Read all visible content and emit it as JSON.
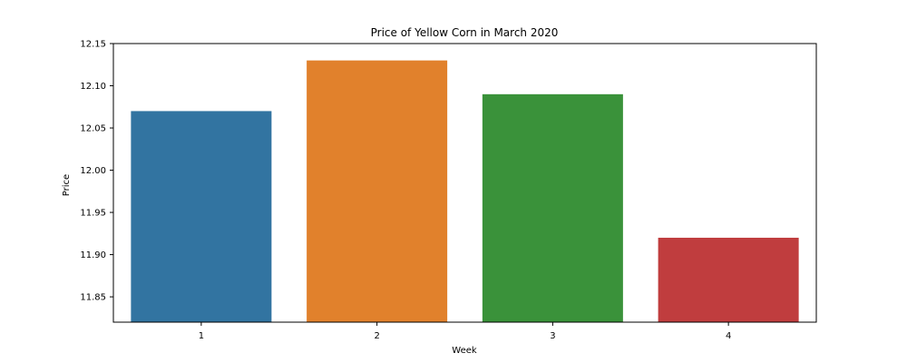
{
  "chart_data": {
    "type": "bar",
    "title": "Price of Yellow Corn in March 2020",
    "xlabel": "Week",
    "ylabel": "Price",
    "categories": [
      "1",
      "2",
      "3",
      "4"
    ],
    "values": [
      12.07,
      12.13,
      12.09,
      11.92
    ],
    "colors": [
      "#3274a1",
      "#e1812c",
      "#3a923a",
      "#c03d3e"
    ],
    "ylim": [
      11.82,
      12.15
    ],
    "yticks": [
      11.85,
      11.9,
      11.95,
      12.0,
      12.05,
      12.1,
      12.15
    ],
    "ytick_labels": [
      "11.85",
      "11.90",
      "11.95",
      "12.00",
      "12.05",
      "12.10",
      "12.15"
    ],
    "grid": false,
    "legend": false
  }
}
